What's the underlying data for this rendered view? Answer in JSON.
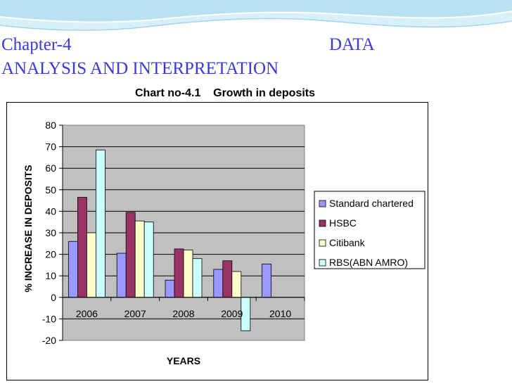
{
  "slide": {
    "heading_line1_left": "Chapter-4",
    "heading_line1_right": "DATA",
    "heading_line2": "ANALYSIS AND INTERPRETATION",
    "chart_caption": "Chart no-4.1    Growth in deposits"
  },
  "colors": {
    "heading": "#3a3ad8",
    "plot_bg": "#c0c0c0",
    "series": [
      "#9999ff",
      "#993366",
      "#ffffcc",
      "#ccffff"
    ]
  },
  "chart_data": {
    "type": "bar",
    "title": "Chart no-4.1    Growth in deposits",
    "xlabel": "YEARS",
    "ylabel": "% INCREASE IN DEPOSITS",
    "categories": [
      "2006",
      "2007",
      "2008",
      "2009",
      "2010"
    ],
    "ylim": [
      -20,
      80
    ],
    "yticks": [
      -20,
      -10,
      0,
      10,
      20,
      30,
      40,
      50,
      60,
      70,
      80
    ],
    "grid": true,
    "legend": "right",
    "series": [
      {
        "name": "Standard chartered",
        "values": [
          26,
          20.5,
          8,
          13,
          15.5
        ]
      },
      {
        "name": "HSBC",
        "values": [
          46.5,
          39.5,
          22.5,
          17,
          null
        ]
      },
      {
        "name": "Citibank",
        "values": [
          30,
          35.5,
          22,
          12,
          null
        ]
      },
      {
        "name": "RBS(ABN AMRO)",
        "values": [
          68.5,
          35,
          18,
          -15.5,
          null
        ]
      }
    ]
  }
}
